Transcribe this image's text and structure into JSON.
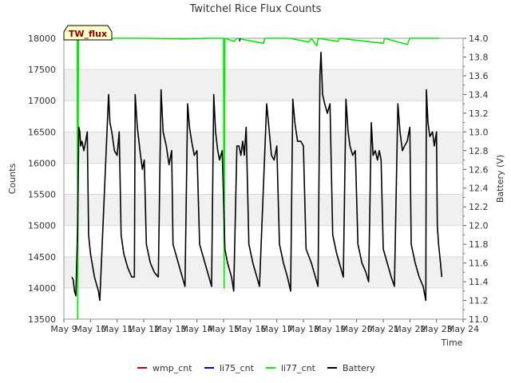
{
  "chart_data": {
    "type": "line",
    "title": "Twitchel Rice Flux Counts",
    "xlabel": "Time",
    "ylabel": "Counts",
    "y2label": "Battery (V)",
    "badge": "TW_flux",
    "x_ticks": [
      "May 9",
      "May 10",
      "May 11",
      "May 12",
      "May 13",
      "May 14",
      "May 15",
      "May 16",
      "May 17",
      "May 18",
      "May 19",
      "May 20",
      "May 21",
      "May 22",
      "May 23",
      "May 24"
    ],
    "ylim": [
      13500,
      18000
    ],
    "y_ticks": [
      "13500",
      "14000",
      "14500",
      "15000",
      "15500",
      "16000",
      "16500",
      "17000",
      "17500",
      "18000"
    ],
    "y2lim": [
      11.0,
      14.0
    ],
    "y2_ticks": [
      "11.0",
      "11.2",
      "11.4",
      "11.6",
      "11.8",
      "12.0",
      "12.2",
      "12.4",
      "12.6",
      "12.8",
      "13.0",
      "13.2",
      "13.4",
      "13.6",
      "13.8",
      "14.0"
    ],
    "legend": [
      "wmp_cnt",
      "li75_cnt",
      "li77_cnt",
      "Battery"
    ],
    "colors": {
      "wmp_cnt": "#cc0000",
      "li75_cnt": "#0000cc",
      "li77_cnt": "#00ee00",
      "Battery": "#000000"
    },
    "series": [
      {
        "name": "li77_cnt",
        "unit": "counts",
        "points": [
          [
            9.3,
            18000
          ],
          [
            9.5,
            18000
          ],
          [
            9.52,
            13500
          ],
          [
            9.55,
            18000
          ],
          [
            9.6,
            18000
          ],
          [
            10.0,
            18000
          ],
          [
            12.0,
            18000
          ],
          [
            13.5,
            17990
          ],
          [
            14.5,
            18000
          ],
          [
            15.0,
            18000
          ],
          [
            15.02,
            14000
          ],
          [
            15.05,
            18000
          ],
          [
            15.4,
            17950
          ],
          [
            15.5,
            18000
          ],
          [
            16.5,
            17920
          ],
          [
            16.55,
            18000
          ],
          [
            17.5,
            18000
          ],
          [
            18.2,
            17940
          ],
          [
            18.3,
            18000
          ],
          [
            18.5,
            17880
          ],
          [
            18.55,
            18000
          ],
          [
            19.3,
            17950
          ],
          [
            19.35,
            18000
          ],
          [
            21.0,
            17920
          ],
          [
            21.05,
            18000
          ],
          [
            21.9,
            17900
          ],
          [
            22.0,
            18000
          ],
          [
            23.1,
            18000
          ]
        ]
      },
      {
        "name": "li75_cnt",
        "unit": "counts",
        "points": [
          [
            15.6,
            17950
          ],
          [
            15.62,
            18000
          ]
        ]
      },
      {
        "name": "wmp_cnt",
        "unit": "counts",
        "points": []
      },
      {
        "name": "Battery",
        "unit": "V",
        "points": [
          [
            9.3,
            11.45
          ],
          [
            9.35,
            11.42
          ],
          [
            9.4,
            11.3
          ],
          [
            9.45,
            11.25
          ],
          [
            9.52,
            12.0
          ],
          [
            9.56,
            13.05
          ],
          [
            9.6,
            13.0
          ],
          [
            9.63,
            12.85
          ],
          [
            9.68,
            12.9
          ],
          [
            9.75,
            12.8
          ],
          [
            9.82,
            12.9
          ],
          [
            9.88,
            13.0
          ],
          [
            9.93,
            11.9
          ],
          [
            10.0,
            11.7
          ],
          [
            10.15,
            11.45
          ],
          [
            10.3,
            11.3
          ],
          [
            10.35,
            11.2
          ],
          [
            10.68,
            13.4
          ],
          [
            10.73,
            13.1
          ],
          [
            10.8,
            13.0
          ],
          [
            10.9,
            12.8
          ],
          [
            11.0,
            12.75
          ],
          [
            11.08,
            13.0
          ],
          [
            11.15,
            11.9
          ],
          [
            11.25,
            11.7
          ],
          [
            11.4,
            11.55
          ],
          [
            11.55,
            11.45
          ],
          [
            11.65,
            11.45
          ],
          [
            11.68,
            13.4
          ],
          [
            11.76,
            13.05
          ],
          [
            11.86,
            12.8
          ],
          [
            11.95,
            12.6
          ],
          [
            12.02,
            12.7
          ],
          [
            12.1,
            11.8
          ],
          [
            12.25,
            11.6
          ],
          [
            12.4,
            11.5
          ],
          [
            12.55,
            11.45
          ],
          [
            12.65,
            13.45
          ],
          [
            12.73,
            13.0
          ],
          [
            12.85,
            12.85
          ],
          [
            12.95,
            12.65
          ],
          [
            13.05,
            12.8
          ],
          [
            13.1,
            11.8
          ],
          [
            13.3,
            11.6
          ],
          [
            13.45,
            11.45
          ],
          [
            13.55,
            11.35
          ],
          [
            13.65,
            13.3
          ],
          [
            13.72,
            13.05
          ],
          [
            13.8,
            12.9
          ],
          [
            13.9,
            12.75
          ],
          [
            14.0,
            12.8
          ],
          [
            14.1,
            11.8
          ],
          [
            14.3,
            11.6
          ],
          [
            14.45,
            11.45
          ],
          [
            14.55,
            11.35
          ],
          [
            14.63,
            13.4
          ],
          [
            14.7,
            13.0
          ],
          [
            14.78,
            12.8
          ],
          [
            14.85,
            12.7
          ],
          [
            14.95,
            12.8
          ],
          [
            15.05,
            11.75
          ],
          [
            15.15,
            11.6
          ],
          [
            15.3,
            11.45
          ],
          [
            15.38,
            11.3
          ],
          [
            15.5,
            12.85
          ],
          [
            15.58,
            12.85
          ],
          [
            15.65,
            12.75
          ],
          [
            15.72,
            12.9
          ],
          [
            15.78,
            12.75
          ],
          [
            15.85,
            13.05
          ],
          [
            15.95,
            11.8
          ],
          [
            16.1,
            11.6
          ],
          [
            16.25,
            11.45
          ],
          [
            16.35,
            11.35
          ],
          [
            16.62,
            13.3
          ],
          [
            16.72,
            13.0
          ],
          [
            16.8,
            12.75
          ],
          [
            16.9,
            12.7
          ],
          [
            17.0,
            12.85
          ],
          [
            17.1,
            11.8
          ],
          [
            17.25,
            11.6
          ],
          [
            17.4,
            11.45
          ],
          [
            17.52,
            11.3
          ],
          [
            17.6,
            13.35
          ],
          [
            17.68,
            13.1
          ],
          [
            17.78,
            12.9
          ],
          [
            17.9,
            12.9
          ],
          [
            18.0,
            12.85
          ],
          [
            18.1,
            11.75
          ],
          [
            18.3,
            11.6
          ],
          [
            18.45,
            11.45
          ],
          [
            18.55,
            11.35
          ],
          [
            18.62,
            13.6
          ],
          [
            18.66,
            13.85
          ],
          [
            18.72,
            13.4
          ],
          [
            18.8,
            13.3
          ],
          [
            18.9,
            13.2
          ],
          [
            19.0,
            13.3
          ],
          [
            19.1,
            11.9
          ],
          [
            19.25,
            11.7
          ],
          [
            19.4,
            11.55
          ],
          [
            19.5,
            11.45
          ],
          [
            19.6,
            13.35
          ],
          [
            19.68,
            13.0
          ],
          [
            19.75,
            12.85
          ],
          [
            19.85,
            12.75
          ],
          [
            19.95,
            12.8
          ],
          [
            20.05,
            11.8
          ],
          [
            20.2,
            11.6
          ],
          [
            20.35,
            11.5
          ],
          [
            20.45,
            11.4
          ],
          [
            20.55,
            13.1
          ],
          [
            20.62,
            12.75
          ],
          [
            20.7,
            12.8
          ],
          [
            20.78,
            12.7
          ],
          [
            20.85,
            12.8
          ],
          [
            20.92,
            12.7
          ],
          [
            21.0,
            11.75
          ],
          [
            21.15,
            11.6
          ],
          [
            21.3,
            11.45
          ],
          [
            21.42,
            11.35
          ],
          [
            21.55,
            13.3
          ],
          [
            21.63,
            13.0
          ],
          [
            21.72,
            12.8
          ],
          [
            21.8,
            12.85
          ],
          [
            21.9,
            12.9
          ],
          [
            22.0,
            13.05
          ],
          [
            22.05,
            11.8
          ],
          [
            22.2,
            11.6
          ],
          [
            22.35,
            11.45
          ],
          [
            22.5,
            11.35
          ],
          [
            22.6,
            11.2
          ],
          [
            22.62,
            13.45
          ],
          [
            22.68,
            13.1
          ],
          [
            22.75,
            12.95
          ],
          [
            22.85,
            13.0
          ],
          [
            22.92,
            12.85
          ],
          [
            23.0,
            13.0
          ],
          [
            23.03,
            12.0
          ],
          [
            23.08,
            11.8
          ],
          [
            23.15,
            11.6
          ],
          [
            23.2,
            11.45
          ]
        ]
      }
    ]
  }
}
